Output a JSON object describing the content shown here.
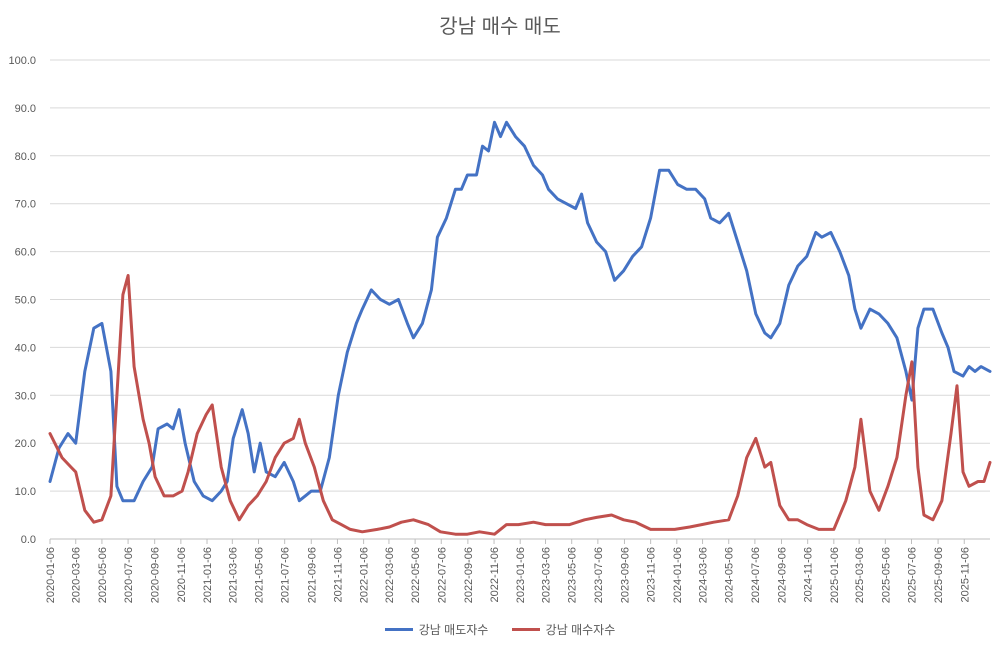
{
  "chart_data": {
    "type": "line",
    "title": "강남 매수 매도",
    "ylim": [
      0,
      100
    ],
    "yticks": [
      "0.0",
      "10.0",
      "20.0",
      "30.0",
      "40.0",
      "50.0",
      "60.0",
      "70.0",
      "80.0",
      "90.0",
      "100.0"
    ],
    "grid": "horizontal",
    "legend": "bottom",
    "x_tick_labels": [
      "2020-01-06",
      "2020-03-06",
      "2020-05-06",
      "2020-07-06",
      "2020-09-06",
      "2020-11-06",
      "2021-01-06",
      "2021-03-06",
      "2021-05-06",
      "2021-07-06",
      "2021-09-06",
      "2021-11-06",
      "2022-01-06",
      "2022-03-06",
      "2022-05-06",
      "2022-07-06",
      "2022-09-06",
      "2022-11-06",
      "2023-01-06",
      "2023-03-06",
      "2023-05-06",
      "2023-07-06",
      "2023-09-06",
      "2023-11-06",
      "2024-01-06",
      "2024-03-06",
      "2024-05-06",
      "2024-07-06",
      "2024-09-06",
      "2024-11-06",
      "2025-01-06",
      "2025-03-06",
      "2025-05-06",
      "2025-07-06",
      "2025-09-06",
      "2025-11-06"
    ],
    "x_end": "2026-01-05",
    "series": [
      {
        "name": "강남 매도자수",
        "color": "#4472c4",
        "points": [
          [
            "2020-01-06",
            12
          ],
          [
            "2020-01-27",
            19
          ],
          [
            "2020-02-17",
            22
          ],
          [
            "2020-03-06",
            20
          ],
          [
            "2020-03-27",
            35
          ],
          [
            "2020-04-17",
            44
          ],
          [
            "2020-05-06",
            45
          ],
          [
            "2020-05-27",
            35
          ],
          [
            "2020-06-10",
            11
          ],
          [
            "2020-06-24",
            8
          ],
          [
            "2020-07-06",
            8
          ],
          [
            "2020-07-20",
            8
          ],
          [
            "2020-08-10",
            12
          ],
          [
            "2020-08-31",
            15
          ],
          [
            "2020-09-14",
            23
          ],
          [
            "2020-10-05",
            24
          ],
          [
            "2020-10-19",
            23
          ],
          [
            "2020-11-02",
            27
          ],
          [
            "2020-11-16",
            20
          ],
          [
            "2020-12-07",
            12
          ],
          [
            "2020-12-28",
            9
          ],
          [
            "2021-01-18",
            8
          ],
          [
            "2021-02-08",
            10
          ],
          [
            "2021-02-22",
            12
          ],
          [
            "2021-03-08",
            21
          ],
          [
            "2021-03-29",
            27
          ],
          [
            "2021-04-12",
            22
          ],
          [
            "2021-04-26",
            14
          ],
          [
            "2021-05-10",
            20
          ],
          [
            "2021-05-24",
            14
          ],
          [
            "2021-06-14",
            13
          ],
          [
            "2021-07-05",
            16
          ],
          [
            "2021-07-26",
            12
          ],
          [
            "2021-08-09",
            8
          ],
          [
            "2021-08-23",
            9
          ],
          [
            "2021-09-06",
            10
          ],
          [
            "2021-09-27",
            10
          ],
          [
            "2021-10-18",
            17
          ],
          [
            "2021-11-08",
            30
          ],
          [
            "2021-11-29",
            39
          ],
          [
            "2021-12-20",
            45
          ],
          [
            "2022-01-03",
            48
          ],
          [
            "2022-01-24",
            52
          ],
          [
            "2022-02-14",
            50
          ],
          [
            "2022-03-07",
            49
          ],
          [
            "2022-03-28",
            50
          ],
          [
            "2022-04-18",
            45
          ],
          [
            "2022-05-02",
            42
          ],
          [
            "2022-05-23",
            45
          ],
          [
            "2022-06-13",
            52
          ],
          [
            "2022-06-27",
            63
          ],
          [
            "2022-07-18",
            67
          ],
          [
            "2022-08-08",
            73
          ],
          [
            "2022-08-22",
            73
          ],
          [
            "2022-09-05",
            76
          ],
          [
            "2022-09-26",
            76
          ],
          [
            "2022-10-10",
            82
          ],
          [
            "2022-10-24",
            81
          ],
          [
            "2022-11-07",
            87
          ],
          [
            "2022-11-21",
            84
          ],
          [
            "2022-12-05",
            87
          ],
          [
            "2022-12-26",
            84
          ],
          [
            "2023-01-16",
            82
          ],
          [
            "2023-02-06",
            78
          ],
          [
            "2023-02-27",
            76
          ],
          [
            "2023-03-13",
            73
          ],
          [
            "2023-04-03",
            71
          ],
          [
            "2023-04-24",
            70
          ],
          [
            "2023-05-15",
            69
          ],
          [
            "2023-05-29",
            72
          ],
          [
            "2023-06-12",
            66
          ],
          [
            "2023-07-03",
            62
          ],
          [
            "2023-07-24",
            60
          ],
          [
            "2023-08-14",
            54
          ],
          [
            "2023-09-04",
            56
          ],
          [
            "2023-09-25",
            59
          ],
          [
            "2023-10-16",
            61
          ],
          [
            "2023-11-06",
            67
          ],
          [
            "2023-11-27",
            77
          ],
          [
            "2023-12-18",
            77
          ],
          [
            "2024-01-08",
            74
          ],
          [
            "2024-01-29",
            73
          ],
          [
            "2024-02-19",
            73
          ],
          [
            "2024-03-11",
            71
          ],
          [
            "2024-03-25",
            67
          ],
          [
            "2024-04-15",
            66
          ],
          [
            "2024-05-06",
            68
          ],
          [
            "2024-05-27",
            62
          ],
          [
            "2024-06-17",
            56
          ],
          [
            "2024-07-08",
            47
          ],
          [
            "2024-07-29",
            43
          ],
          [
            "2024-08-12",
            42
          ],
          [
            "2024-09-02",
            45
          ],
          [
            "2024-09-23",
            53
          ],
          [
            "2024-10-14",
            57
          ],
          [
            "2024-11-04",
            59
          ],
          [
            "2024-11-25",
            64
          ],
          [
            "2024-12-09",
            63
          ],
          [
            "2024-12-30",
            64
          ],
          [
            "2025-01-20",
            60
          ],
          [
            "2025-02-10",
            55
          ],
          [
            "2025-02-24",
            48
          ],
          [
            "2025-03-10",
            44
          ],
          [
            "2025-03-31",
            48
          ],
          [
            "2025-04-21",
            47
          ],
          [
            "2025-05-12",
            45
          ],
          [
            "2025-06-02",
            42
          ],
          [
            "2025-06-23",
            35
          ],
          [
            "2025-07-07",
            29
          ],
          [
            "2025-07-21",
            44
          ],
          [
            "2025-08-04",
            48
          ],
          [
            "2025-08-25",
            48
          ],
          [
            "2025-09-15",
            43
          ],
          [
            "2025-09-29",
            40
          ],
          [
            "2025-10-13",
            35
          ],
          [
            "2025-11-03",
            34
          ],
          [
            "2025-11-17",
            36
          ],
          [
            "2025-12-01",
            35
          ],
          [
            "2025-12-15",
            36
          ],
          [
            "2026-01-05",
            35
          ]
        ]
      },
      {
        "name": "강남 매수자수",
        "color": "#c0504d",
        "points": [
          [
            "2020-01-06",
            22
          ],
          [
            "2020-02-03",
            17
          ],
          [
            "2020-02-24",
            15
          ],
          [
            "2020-03-06",
            14
          ],
          [
            "2020-03-27",
            6
          ],
          [
            "2020-04-17",
            3.5
          ],
          [
            "2020-05-06",
            4
          ],
          [
            "2020-05-27",
            9
          ],
          [
            "2020-06-10",
            30
          ],
          [
            "2020-06-24",
            51
          ],
          [
            "2020-07-06",
            55
          ],
          [
            "2020-07-20",
            36
          ],
          [
            "2020-08-10",
            25
          ],
          [
            "2020-08-24",
            20
          ],
          [
            "2020-09-07",
            13
          ],
          [
            "2020-09-28",
            9
          ],
          [
            "2020-10-19",
            9
          ],
          [
            "2020-11-09",
            10
          ],
          [
            "2020-11-23",
            14
          ],
          [
            "2020-12-14",
            22
          ],
          [
            "2021-01-04",
            26
          ],
          [
            "2021-01-18",
            28
          ],
          [
            "2021-02-08",
            15
          ],
          [
            "2021-03-01",
            8
          ],
          [
            "2021-03-22",
            4
          ],
          [
            "2021-04-12",
            7
          ],
          [
            "2021-05-03",
            9
          ],
          [
            "2021-05-24",
            12
          ],
          [
            "2021-06-14",
            17
          ],
          [
            "2021-07-05",
            20
          ],
          [
            "2021-07-26",
            21
          ],
          [
            "2021-08-09",
            25
          ],
          [
            "2021-08-23",
            20
          ],
          [
            "2021-09-13",
            15
          ],
          [
            "2021-10-04",
            8
          ],
          [
            "2021-10-25",
            4
          ],
          [
            "2021-11-15",
            3
          ],
          [
            "2021-12-06",
            2
          ],
          [
            "2022-01-03",
            1.5
          ],
          [
            "2022-02-07",
            2
          ],
          [
            "2022-03-07",
            2.5
          ],
          [
            "2022-04-04",
            3.5
          ],
          [
            "2022-05-02",
            4
          ],
          [
            "2022-06-06",
            3
          ],
          [
            "2022-07-04",
            1.5
          ],
          [
            "2022-08-08",
            1
          ],
          [
            "2022-09-05",
            1
          ],
          [
            "2022-10-03",
            1.5
          ],
          [
            "2022-11-07",
            1
          ],
          [
            "2022-12-05",
            3
          ],
          [
            "2023-01-02",
            3
          ],
          [
            "2023-02-06",
            3.5
          ],
          [
            "2023-03-06",
            3
          ],
          [
            "2023-04-03",
            3
          ],
          [
            "2023-05-01",
            3
          ],
          [
            "2023-06-05",
            4
          ],
          [
            "2023-07-03",
            4.5
          ],
          [
            "2023-08-07",
            5
          ],
          [
            "2023-09-04",
            4
          ],
          [
            "2023-10-02",
            3.5
          ],
          [
            "2023-11-06",
            2
          ],
          [
            "2023-12-04",
            2
          ],
          [
            "2024-01-01",
            2
          ],
          [
            "2024-02-05",
            2.5
          ],
          [
            "2024-03-04",
            3
          ],
          [
            "2024-04-01",
            3.5
          ],
          [
            "2024-05-06",
            4
          ],
          [
            "2024-05-27",
            9
          ],
          [
            "2024-06-17",
            17
          ],
          [
            "2024-07-08",
            21
          ],
          [
            "2024-07-29",
            15
          ],
          [
            "2024-08-12",
            16
          ],
          [
            "2024-09-02",
            7
          ],
          [
            "2024-09-23",
            4
          ],
          [
            "2024-10-14",
            4
          ],
          [
            "2024-11-04",
            3
          ],
          [
            "2024-12-02",
            2
          ],
          [
            "2025-01-06",
            2
          ],
          [
            "2025-02-03",
            8
          ],
          [
            "2025-02-24",
            15
          ],
          [
            "2025-03-10",
            25
          ],
          [
            "2025-03-31",
            10
          ],
          [
            "2025-04-21",
            6
          ],
          [
            "2025-05-12",
            11
          ],
          [
            "2025-06-02",
            17
          ],
          [
            "2025-06-23",
            30
          ],
          [
            "2025-07-07",
            37
          ],
          [
            "2025-07-21",
            15
          ],
          [
            "2025-08-04",
            5
          ],
          [
            "2025-08-25",
            4
          ],
          [
            "2025-09-15",
            8
          ],
          [
            "2025-10-06",
            22
          ],
          [
            "2025-10-20",
            32
          ],
          [
            "2025-11-03",
            14
          ],
          [
            "2025-11-17",
            11
          ],
          [
            "2025-12-08",
            12
          ],
          [
            "2025-12-22",
            12
          ],
          [
            "2026-01-05",
            16
          ]
        ]
      }
    ]
  }
}
